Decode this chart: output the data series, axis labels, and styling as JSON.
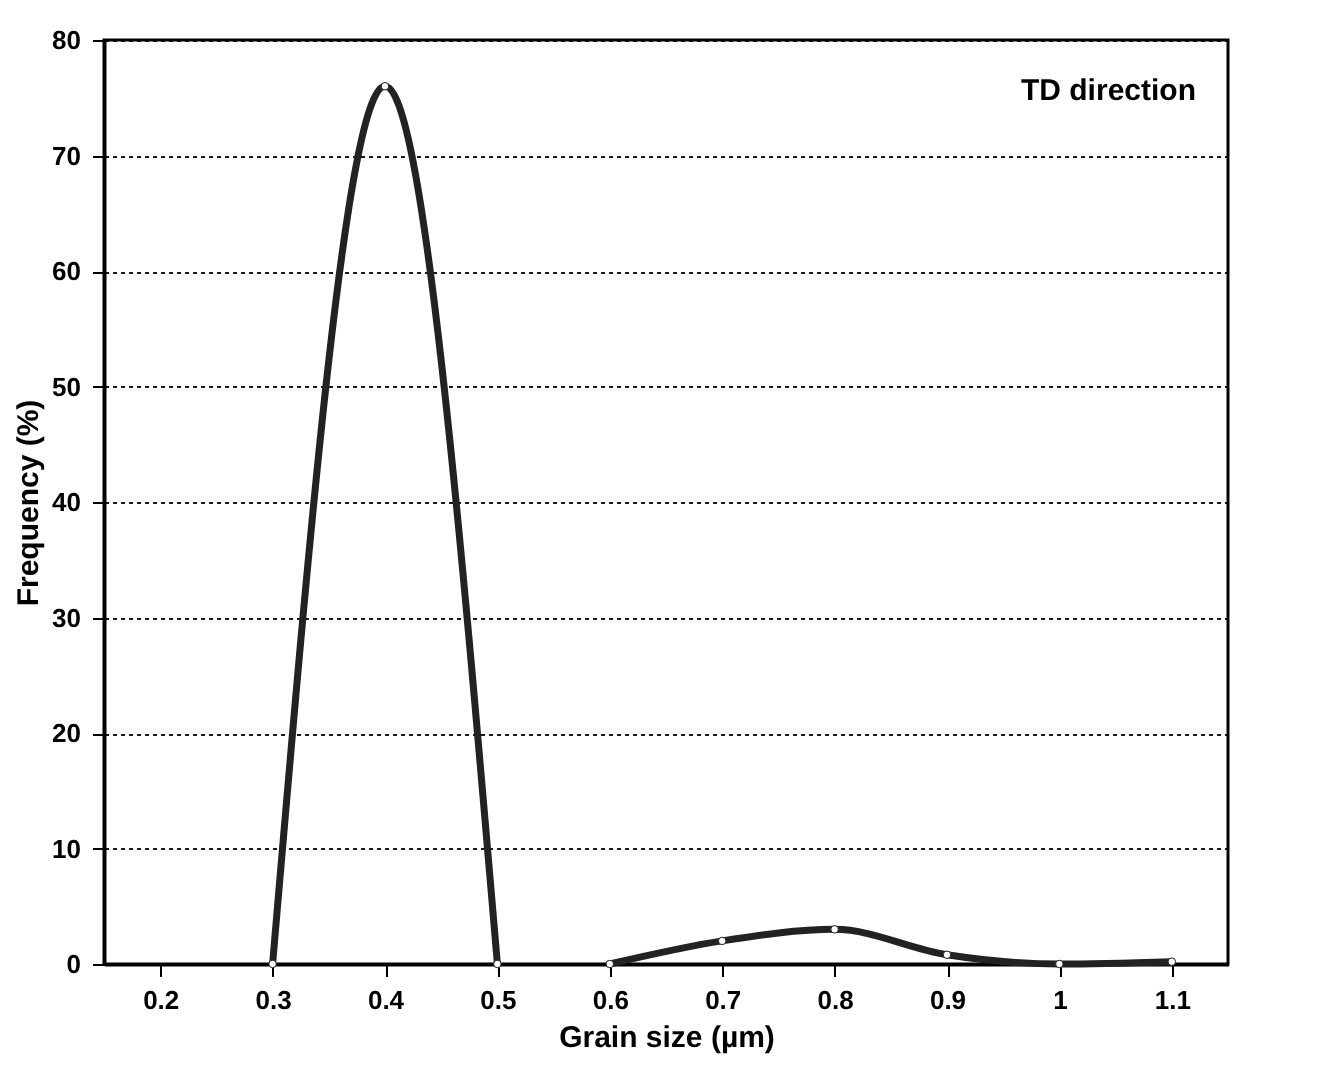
{
  "chart_data": {
    "type": "line",
    "xlabel": "Grain size (µm)",
    "ylabel": "Frequency (%)",
    "annotations": [
      "TD direction"
    ],
    "series": [
      {
        "color": "#222222",
        "x": [
          0.3,
          0.4,
          0.5
        ],
        "values": [
          0,
          76,
          0
        ]
      },
      {
        "color": "#222222",
        "x": [
          0.6,
          0.7,
          0.8,
          0.9,
          1.0,
          1.1
        ],
        "values": [
          0,
          2,
          3,
          0.8,
          0,
          0.2
        ]
      }
    ],
    "xlim": [
      0.15,
      1.15
    ],
    "xticks": [
      0.2,
      0.3,
      0.4,
      0.5,
      0.6,
      0.7,
      0.8,
      0.9,
      1,
      1.1
    ],
    "ylim": [
      0,
      80
    ],
    "yticks": [
      0,
      10,
      20,
      30,
      40,
      50,
      60,
      70,
      80
    ],
    "grid": "y",
    "marker": "circle",
    "line_style": "solid"
  }
}
